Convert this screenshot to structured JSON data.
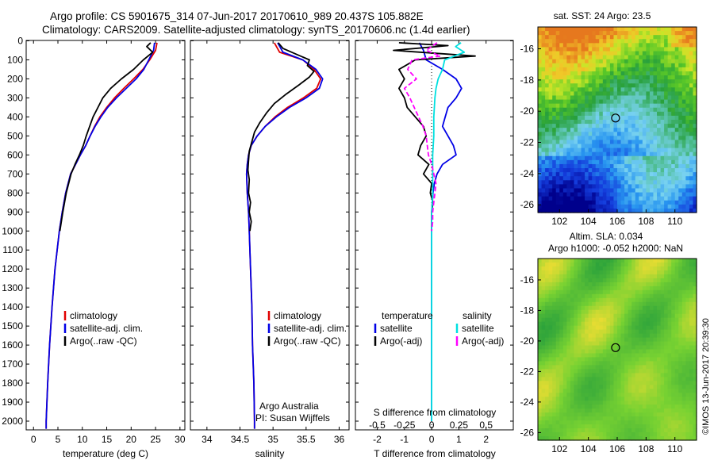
{
  "header": {
    "line1": "Argo profile: CS 5901675_314 07-Jun-2017 20170610_989 20.437S 105.882E",
    "line2": "Climatology: CARS2009. Satellite-adjusted climatology: synTS_20170606.nc (1.4d earlier)"
  },
  "side_stamp": "©IMOS 13-Jun-2017 20:39:30",
  "colors": {
    "climatology": "#e00000",
    "satellite": "#0000e6",
    "argo": "#000000",
    "sat_salinity": "#00e0e0",
    "argo_adj_salinity": "#ff00ff"
  },
  "chart_data": [
    {
      "type": "line",
      "panel": "temperature",
      "xlabel": "temperature (deg C)",
      "xticks": [
        0,
        5,
        10,
        15,
        20,
        25,
        30
      ],
      "xlim": [
        -1.5,
        31
      ],
      "ylim": [
        0,
        2080
      ],
      "yticks": [
        0,
        100,
        200,
        300,
        400,
        500,
        600,
        700,
        800,
        900,
        1000,
        1100,
        1200,
        1300,
        1400,
        1500,
        1600,
        1700,
        1800,
        1900,
        2000
      ],
      "legend": [
        "climatology",
        "satellite-adj. clim.",
        "Argo(..raw -QC)"
      ],
      "series": [
        {
          "name": "climatology",
          "color": "#e00000",
          "depth": [
            10,
            50,
            100,
            150,
            200,
            250,
            300,
            350,
            400,
            450,
            500,
            550,
            600,
            650,
            700,
            800,
            900,
            1000,
            1200,
            1400,
            1600,
            1800,
            2000,
            2040
          ],
          "values": [
            25.3,
            25.0,
            23.8,
            22.4,
            20.5,
            18.5,
            16.6,
            15.0,
            13.6,
            12.5,
            11.6,
            10.7,
            9.6,
            8.6,
            7.6,
            6.6,
            5.9,
            5.3,
            4.4,
            3.8,
            3.3,
            2.9,
            2.6,
            2.6
          ]
        },
        {
          "name": "satellite-adj. clim.",
          "color": "#0000e6",
          "depth": [
            10,
            50,
            100,
            150,
            200,
            250,
            300,
            350,
            400,
            450,
            500,
            550,
            600,
            650,
            700,
            800,
            900,
            1000,
            1200,
            1400,
            1600,
            1800,
            2000,
            2040
          ],
          "values": [
            24.8,
            24.6,
            23.6,
            22.6,
            21.0,
            19.0,
            17.0,
            15.2,
            13.8,
            12.6,
            11.6,
            10.7,
            9.6,
            8.6,
            7.6,
            6.6,
            5.9,
            5.3,
            4.4,
            3.8,
            3.3,
            2.9,
            2.6,
            2.6
          ]
        },
        {
          "name": "Argo(..raw -QC)",
          "color": "#000000",
          "depth": [
            10,
            30,
            60,
            100,
            150,
            200,
            250,
            300,
            350,
            400,
            450,
            500,
            550,
            600,
            650,
            700,
            800,
            900,
            1000
          ],
          "values": [
            24.0,
            23.2,
            24.4,
            22.5,
            20.5,
            18.0,
            15.8,
            14.2,
            13.2,
            12.2,
            11.5,
            10.8,
            10.2,
            9.4,
            8.5,
            7.7,
            6.7,
            6.0,
            5.4
          ]
        }
      ]
    },
    {
      "type": "line",
      "panel": "salinity",
      "xlabel": "salinity",
      "xticks": [
        34,
        34.5,
        35,
        35.5,
        36
      ],
      "xlim": [
        33.75,
        36.15
      ],
      "ylim": [
        0,
        2080
      ],
      "legend": [
        "climatology",
        "satellite-adj. clim.",
        "Argo(..raw -QC)"
      ],
      "annotation": [
        "Argo Australia",
        "PI: Susan Wijffels"
      ],
      "series": [
        {
          "name": "climatology",
          "color": "#e00000",
          "depth": [
            10,
            60,
            100,
            150,
            200,
            250,
            300,
            350,
            400,
            450,
            500,
            550,
            600,
            650,
            700,
            800,
            900,
            1000,
            1200,
            1400,
            1600,
            1800,
            2000,
            2040
          ],
          "values": [
            35.02,
            35.1,
            35.45,
            35.62,
            35.72,
            35.66,
            35.46,
            35.22,
            35.03,
            34.88,
            34.76,
            34.67,
            34.63,
            34.61,
            34.6,
            34.61,
            34.63,
            34.64,
            34.66,
            34.68,
            34.69,
            34.71,
            34.72,
            34.72
          ]
        },
        {
          "name": "satellite-adj. clim.",
          "color": "#0000e6",
          "depth": [
            10,
            60,
            100,
            150,
            200,
            250,
            300,
            350,
            400,
            450,
            500,
            550,
            600,
            650,
            700,
            800,
            900,
            1000,
            1200,
            1400,
            1600,
            1800,
            2000,
            2040
          ],
          "values": [
            35.07,
            35.15,
            35.45,
            35.65,
            35.75,
            35.7,
            35.5,
            35.25,
            35.05,
            34.88,
            34.76,
            34.67,
            34.63,
            34.61,
            34.6,
            34.61,
            34.63,
            34.64,
            34.66,
            34.68,
            34.69,
            34.71,
            34.72,
            34.72
          ]
        },
        {
          "name": "Argo(..raw -QC)",
          "color": "#000000",
          "depth": [
            10,
            40,
            70,
            100,
            130,
            160,
            190,
            230,
            280,
            330,
            380,
            430,
            480,
            530,
            580,
            630,
            680,
            730,
            800,
            850,
            900,
            950,
            1000
          ],
          "values": [
            35.08,
            35.15,
            35.35,
            35.55,
            35.52,
            35.62,
            35.55,
            35.4,
            35.2,
            35.02,
            34.9,
            34.8,
            34.72,
            34.68,
            34.64,
            34.63,
            34.62,
            34.64,
            34.63,
            34.66,
            34.64,
            34.67,
            34.65
          ]
        }
      ]
    },
    {
      "type": "line",
      "panel": "difference",
      "xlabel": "T difference from climatology",
      "xlabel_top": "S difference from climatology",
      "xticks": [
        -2,
        -1,
        0,
        1,
        2
      ],
      "xticks_s": [
        "-0.5",
        "-0.25",
        "0",
        "0.25",
        "0.5"
      ],
      "xlim": [
        -2.8,
        3.0
      ],
      "ylim": [
        0,
        2080
      ],
      "legend_t_title": "temperature",
      "legend_s_title": "salinity",
      "legend": [
        "satellite",
        "Argo(-adj)",
        "satellite",
        "Argo(-adj)"
      ],
      "series": [
        {
          "name": "satellite",
          "kind": "T",
          "color": "#0000e6",
          "depth": [
            10,
            50,
            100,
            150,
            200,
            250,
            300,
            350,
            400,
            450,
            500,
            550,
            600,
            650,
            700,
            750,
            800,
            900,
            1000,
            1400,
            2000
          ],
          "values": [
            -0.45,
            -0.3,
            -0.2,
            0.4,
            0.9,
            1.1,
            0.9,
            0.6,
            0.5,
            0.4,
            0.6,
            0.8,
            0.9,
            0.4,
            0.2,
            0.1,
            0.05,
            0.0,
            0.0,
            0.0,
            0.0
          ]
        },
        {
          "name": "Argo(-adj)",
          "kind": "T",
          "color": "#000000",
          "depth": [
            10,
            25,
            50,
            80,
            100,
            150,
            200,
            250,
            300,
            350,
            400,
            450,
            500,
            550,
            600,
            650,
            700,
            750,
            800,
            850,
            900,
            1000
          ],
          "values": [
            -1.2,
            0.6,
            -1.4,
            1.6,
            -0.6,
            -1.2,
            -1.0,
            -1.2,
            -1.0,
            -0.9,
            -0.6,
            -0.3,
            -0.2,
            -0.4,
            -0.5,
            -0.1,
            -0.3,
            0.0,
            -0.05,
            0.05,
            0.0,
            0.0
          ]
        },
        {
          "name": "satellite",
          "kind": "S",
          "color": "#00e0e0",
          "depth": [
            10,
            30,
            60,
            100,
            150,
            200,
            250,
            300,
            400,
            500,
            600,
            700,
            800,
            900,
            1000,
            1200,
            1400,
            1600,
            1800,
            2000
          ],
          "values": [
            0.27,
            0.22,
            0.3,
            0.12,
            0.1,
            0.06,
            0.04,
            0.03,
            0.02,
            0.02,
            0.01,
            0.01,
            0.01,
            0.0,
            0.0,
            0.0,
            0.0,
            0.0,
            0.0,
            0.0
          ]
        },
        {
          "name": "Argo(-adj)",
          "kind": "S",
          "color": "#ff00ff",
          "depth": [
            10,
            50,
            80,
            100,
            150,
            200,
            250,
            300,
            350,
            400,
            450,
            500,
            550,
            600,
            650,
            700,
            750,
            800,
            850,
            900,
            950,
            1000
          ],
          "values": [
            0.05,
            -0.05,
            0.08,
            -0.18,
            -0.22,
            -0.14,
            -0.25,
            -0.2,
            -0.16,
            -0.12,
            -0.08,
            -0.05,
            -0.04,
            -0.03,
            0.0,
            0.02,
            0.04,
            0.03,
            0.02,
            0.01,
            0.01,
            0.0
          ]
        }
      ]
    },
    {
      "type": "heatmap",
      "panel": "map_sst",
      "title": "sat. SST: 24 Argo: 23.5",
      "xticks": [
        102,
        104,
        106,
        108,
        110
      ],
      "yticks": [
        -16,
        -18,
        -20,
        -22,
        -24,
        -26
      ],
      "xlim": [
        100.5,
        111.5
      ],
      "ylim": [
        -26.5,
        -14.6
      ],
      "argo_position": {
        "lon": 105.882,
        "lat": -20.437
      }
    },
    {
      "type": "heatmap",
      "panel": "map_sla",
      "title": "Altim. SLA: 0.034",
      "subtitle": "Argo h1000: -0.052 h2000: NaN",
      "xticks": [
        102,
        104,
        106,
        108,
        110
      ],
      "yticks": [
        -16,
        -18,
        -20,
        -22,
        -24,
        -26
      ],
      "xlim": [
        100.5,
        111.5
      ],
      "ylim": [
        -26.5,
        -14.6
      ],
      "argo_position": {
        "lon": 105.882,
        "lat": -20.437
      }
    }
  ]
}
